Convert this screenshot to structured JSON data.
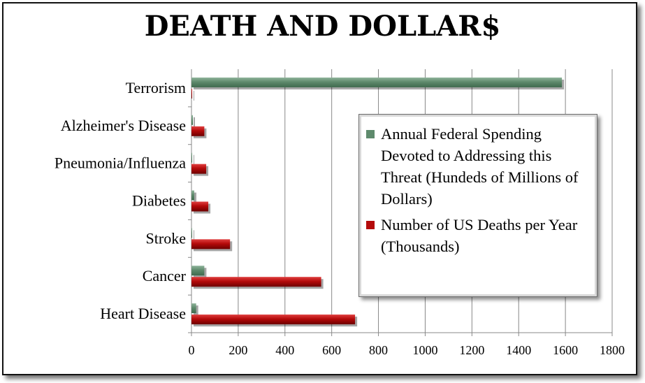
{
  "colors": {
    "spending": "#5e8a6c",
    "deaths": "#b40a0a"
  },
  "chart_data": {
    "type": "bar",
    "orientation": "horizontal",
    "title": "DEATH AND DOLLAR$",
    "categories": [
      "Heart Disease",
      "Cancer",
      "Stroke",
      "Diabetes",
      "Pneumonia/Influenza",
      "Alzheimer's Disease",
      "Terrorism"
    ],
    "series": [
      {
        "name": "Annual Federal Spending Devoted to Addressing this Threat (Hundeds of Millions of Dollars)",
        "values": [
          20,
          55,
          1,
          12,
          2,
          6,
          1585
        ]
      },
      {
        "name": "Number of US Deaths per Year (Thousands)",
        "values": [
          700,
          555,
          165,
          72,
          63,
          55,
          0.01
        ]
      }
    ],
    "xlim": [
      0,
      1800
    ],
    "xticks": [
      "0",
      "200",
      "400",
      "600",
      "800",
      "1000",
      "1200",
      "1400",
      "1600",
      "1800"
    ],
    "grid": "vertical",
    "legend_position": "right"
  }
}
